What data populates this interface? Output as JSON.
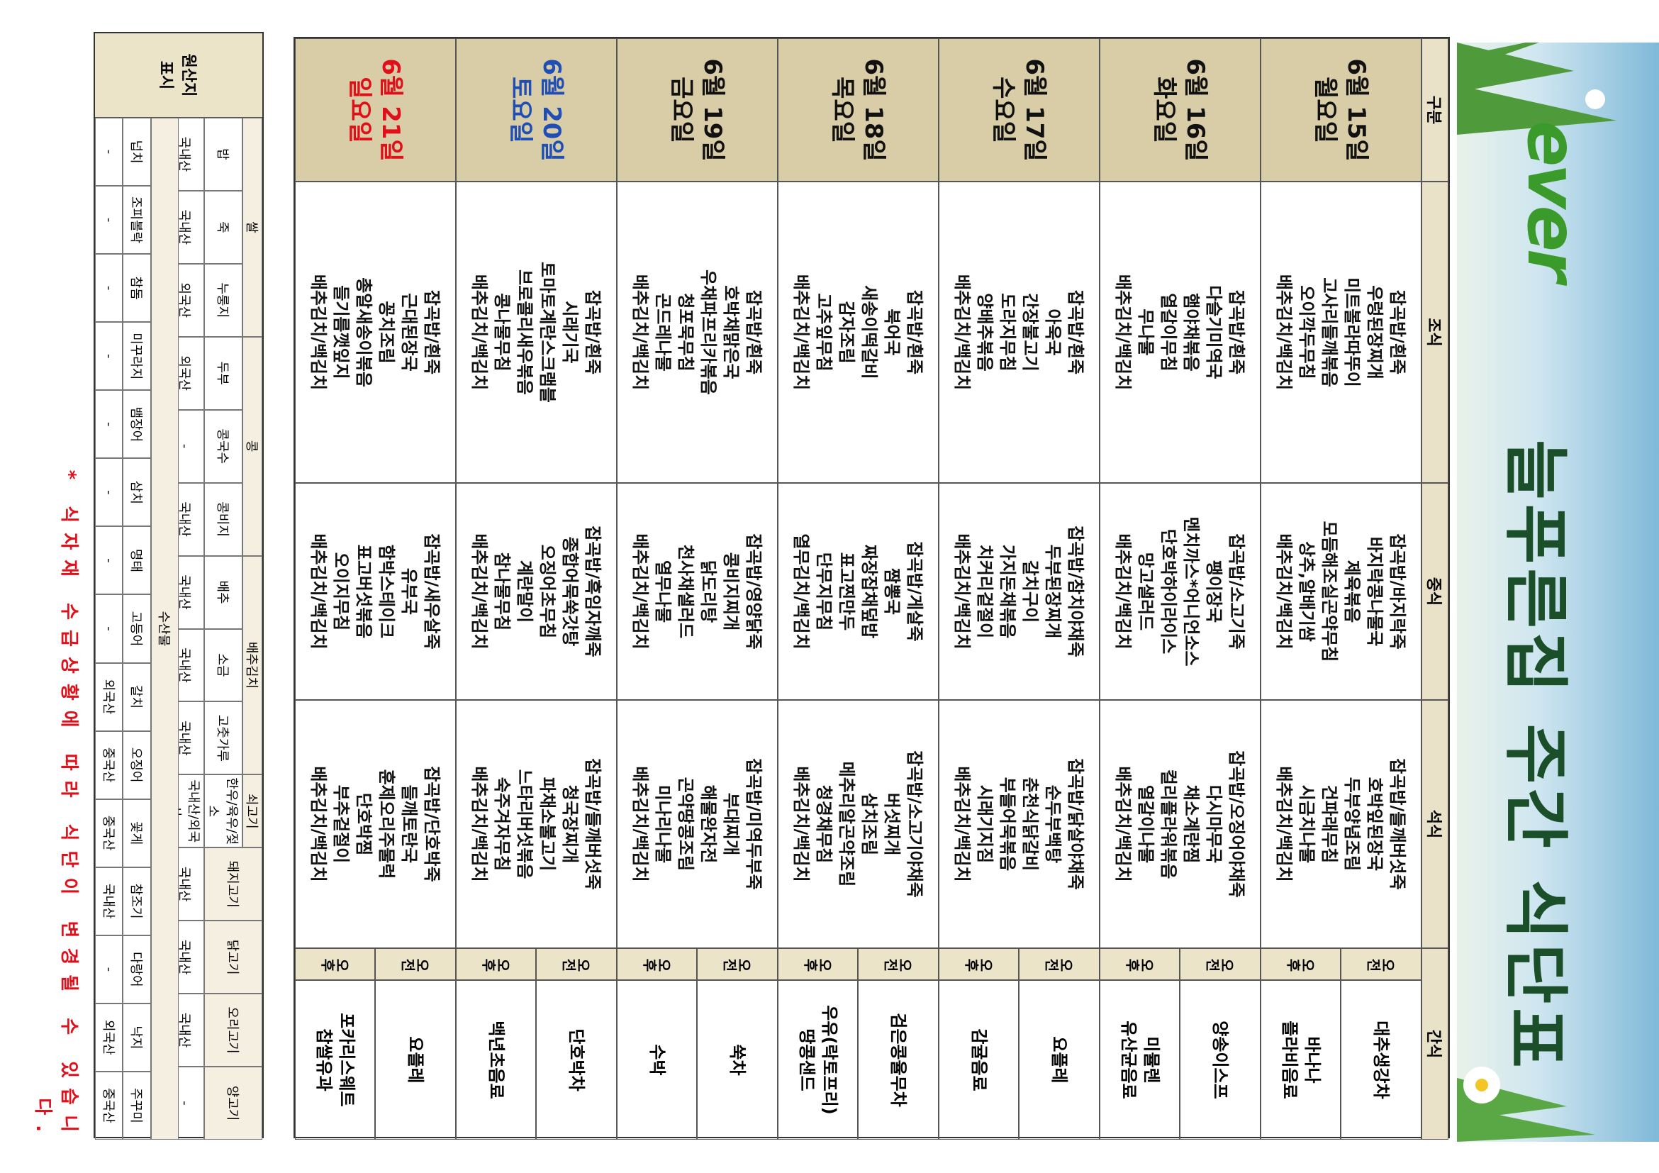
{
  "header": {
    "logo": "ever",
    "title": "늘푸른집 주간 식단표"
  },
  "table": {
    "columns": [
      "구분",
      "조식",
      "중식",
      "석식",
      "간식"
    ],
    "rows": [
      {
        "date": "6월 15일",
        "weekday": "월요일",
        "color": "#111111",
        "breakfast": [
          "잡곡밥/흰죽",
          "우렁된장찌개",
          "미트볼라따뚜이",
          "고사리들깨볶음",
          "오이깍두무침",
          "배추김치/백김치"
        ],
        "lunch": [
          "잡곡밥/바지락죽",
          "바지락콩나물국",
          "제육볶음",
          "모듬해조실곤약무침",
          "상추,알배기쌈",
          "배추김치/백김치"
        ],
        "dinner": [
          "잡곡밥/들깨버섯죽",
          "호박잎된장국",
          "두부양념조림",
          "건파래무침",
          "시금치나물",
          "배추김치/백김치"
        ],
        "snacks": [
          {
            "time": "오전",
            "items": [
              "대추생강차"
            ]
          },
          {
            "time": "오후",
            "items": [
              "바나나",
              "플라비음료"
            ]
          }
        ]
      },
      {
        "date": "6월 16일",
        "weekday": "화요일",
        "color": "#111111",
        "breakfast": [
          "잡곡밥/흰죽",
          "다슬기미역국",
          "햄야채볶음",
          "열갈이무침",
          "무나물",
          "배추김치/백김치"
        ],
        "lunch": [
          "잡곡밥/소고기죽",
          "팽이장국",
          "멘치까스*어니언소스",
          "단호박하이라이스",
          "망고샐러드",
          "배추김치/백김치"
        ],
        "dinner": [
          "잡곡밥/오징어야채죽",
          "다시마무국",
          "채소계란찜",
          "컬리플라워볶음",
          "열갈이나물",
          "배추김치/백김치"
        ],
        "snacks": [
          {
            "time": "오전",
            "items": [
              "양송이스프"
            ]
          },
          {
            "time": "오후",
            "items": [
              "미뮬렌",
              "유산균음료"
            ]
          }
        ]
      },
      {
        "date": "6월 17일",
        "weekday": "수요일",
        "color": "#111111",
        "breakfast": [
          "잡곡밥/흰죽",
          "아욱국",
          "간장불고기",
          "도라지무침",
          "양배추볶음",
          "배추김치/백김치"
        ],
        "lunch": [
          "잡곡밥/참치야채죽",
          "두부된장찌개",
          "갈치구이",
          "가지돈채볶음",
          "치커리겉절이",
          "배추김치/백김치"
        ],
        "dinner": [
          "잡곡밥/닭살야채죽",
          "순두부백탕",
          "춘천식닭갈비",
          "부들어묵볶음",
          "시래기지짐",
          "배추김치/백김치"
        ],
        "snacks": [
          {
            "time": "오전",
            "items": [
              "요플레"
            ]
          },
          {
            "time": "오후",
            "items": [
              "감귤음료"
            ]
          }
        ]
      },
      {
        "date": "6월 18일",
        "weekday": "목요일",
        "color": "#111111",
        "breakfast": [
          "잡곡밥/흰죽",
          "북어국",
          "새송이떡갈비",
          "감자조림",
          "고추잎무침",
          "배추김치/백김치"
        ],
        "lunch": [
          "잡곡밥/게살죽",
          "짬뽕국",
          "짜장잡채덮밥",
          "표고찐만두",
          "단무지무침",
          "열무김치/백김치"
        ],
        "dinner": [
          "잡곡밥/소고기야채죽",
          "버섯찌개",
          "삼치조림",
          "메추리알곤약조림",
          "청경채무침",
          "배추김치/백김치"
        ],
        "snacks": [
          {
            "time": "오전",
            "items": [
              "검은콩율무차"
            ]
          },
          {
            "time": "오후",
            "items": [
              "우유(락토프리)",
              "땅콩샌드"
            ]
          }
        ]
      },
      {
        "date": "6월 19일",
        "weekday": "금요일",
        "color": "#111111",
        "breakfast": [
          "잡곡밥/흰죽",
          "호박채맑은국",
          "우채파프리카볶음",
          "청포묵무침",
          "곤드레나물",
          "배추김치/백김치"
        ],
        "lunch": [
          "잡곡밥/영양닭죽",
          "콩비지찌개",
          "닭도리탕",
          "천사채샐러드",
          "열무나물",
          "배추김치/백김치"
        ],
        "dinner": [
          "잡곡밥/미역두부죽",
          "부대찌개",
          "해물완자전",
          "곤약땅콩조림",
          "미나리나물",
          "배추김치/백김치"
        ],
        "snacks": [
          {
            "time": "오전",
            "items": [
              "쑥차"
            ]
          },
          {
            "time": "오후",
            "items": [
              "수박"
            ]
          }
        ]
      },
      {
        "date": "6월 20일",
        "weekday": "토요일",
        "color": "#1f4fb4",
        "breakfast": [
          "잡곡밥/흰죽",
          "시래기국",
          "토마토계란스크램블",
          "브로콜리새우볶음",
          "콩나물무침",
          "배추김치/백김치"
        ],
        "lunch": [
          "잡곡밥/흑임자깨죽",
          "종합어묵쑥갓탕",
          "오징어초무침",
          "계란말이",
          "참나물무침",
          "배추김치/백김치"
        ],
        "dinner": [
          "잡곡밥/들깨버섯죽",
          "청국장찌개",
          "파채소불고기",
          "느타리버섯볶음",
          "숙주겨자무침",
          "배추김치/백김치"
        ],
        "snacks": [
          {
            "time": "오전",
            "items": [
              "단호박차"
            ]
          },
          {
            "time": "오후",
            "items": [
              "백년초음료"
            ]
          }
        ]
      },
      {
        "date": "6월 21일",
        "weekday": "일요일",
        "color": "#e0101b",
        "breakfast": [
          "잡곡밥/흰죽",
          "근대된장국",
          "꽁치조림",
          "총알새송이볶음",
          "들기름깻잎지",
          "배추김치/백김치"
        ],
        "lunch": [
          "잡곡밥/새우살죽",
          "유부국",
          "함박스테이크",
          "표고버섯볶음",
          "오이지무침",
          "배추김치/백김치"
        ],
        "dinner": [
          "잡곡밥/단호박죽",
          "들깨토란국",
          "훈제오리주물럭",
          "단호박찜",
          "부추겉절이",
          "배추김치/백김치"
        ],
        "snacks": [
          {
            "time": "오전",
            "items": [
              "요플레"
            ]
          },
          {
            "time": "오후",
            "items": [
              "포카리스웨트",
              "찹쌀유과"
            ]
          }
        ]
      }
    ]
  },
  "origin": {
    "label": "원산지 표시",
    "groups": [
      {
        "name": "쌀",
        "items": [
          {
            "name": "밥",
            "origin": "국내산"
          },
          {
            "name": "죽",
            "origin": "국내산"
          },
          {
            "name": "누룽지",
            "origin": "외국산"
          }
        ]
      },
      {
        "name": "콩",
        "items": [
          {
            "name": "두부",
            "origin": "외국산"
          },
          {
            "name": "콩국수",
            "origin": "-"
          },
          {
            "name": "콩비지",
            "origin": "국내산"
          }
        ]
      },
      {
        "name": "배추김치",
        "items": [
          {
            "name": "배추",
            "origin": "국내산"
          },
          {
            "name": "소금",
            "origin": "국내산"
          },
          {
            "name": "고춧가루",
            "origin": "국내산"
          }
        ]
      },
      {
        "name": "쇠고기",
        "items": [
          {
            "name": "한우/육우/젖소",
            "origin": "국내산/외국산"
          }
        ]
      },
      {
        "name": "돼지고기",
        "items": [
          {
            "origin": "국내산"
          }
        ]
      },
      {
        "name": "닭고기",
        "items": [
          {
            "origin": "국내산"
          }
        ]
      },
      {
        "name": "오리고기",
        "items": [
          {
            "origin": "국내산"
          }
        ]
      },
      {
        "name": "양고기",
        "items": [
          {
            "origin": "-"
          }
        ]
      }
    ],
    "seafood": {
      "name": "수산물",
      "items": [
        {
          "name": "넙치",
          "origin": "-"
        },
        {
          "name": "조피볼락",
          "origin": "-"
        },
        {
          "name": "참돔",
          "origin": "-"
        },
        {
          "name": "미꾸라지",
          "origin": "-"
        },
        {
          "name": "뱀장어",
          "origin": "-"
        },
        {
          "name": "삼치",
          "origin": "-"
        },
        {
          "name": "명태",
          "origin": "-"
        },
        {
          "name": "고등어",
          "origin": "-"
        },
        {
          "name": "갈치",
          "origin": "외국산"
        },
        {
          "name": "오징어",
          "origin": "중국산"
        },
        {
          "name": "꽃게",
          "origin": "중국산"
        },
        {
          "name": "참조기",
          "origin": "국내산"
        },
        {
          "name": "다랑어",
          "origin": "-"
        },
        {
          "name": "낙지",
          "origin": "외국산"
        },
        {
          "name": "주꾸미",
          "origin": "중국산"
        }
      ]
    }
  },
  "footnote": "* 식자재 수급상황에 따라 식단이 변경될 수 있습니다."
}
